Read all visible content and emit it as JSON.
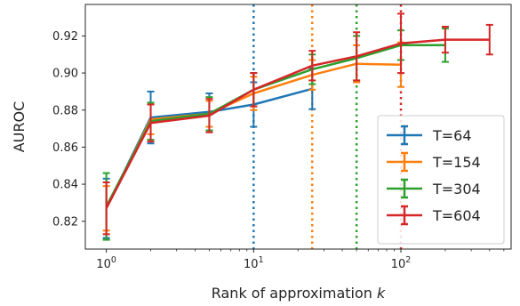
{
  "chart_data": {
    "type": "line",
    "xlabel": "Rank of approximation",
    "xlabel_var": "k",
    "ylabel": "AUROC",
    "xscale": "log",
    "xlim": [
      0.72,
      560
    ],
    "ylim": [
      0.805,
      0.937
    ],
    "xticks": [
      {
        "value": 1,
        "base": "10",
        "exp": "0"
      },
      {
        "value": 10,
        "base": "10",
        "exp": "1"
      },
      {
        "value": 100,
        "base": "10",
        "exp": "2"
      }
    ],
    "yticks": [
      {
        "value": 0.82,
        "label": "0.82"
      },
      {
        "value": 0.84,
        "label": "0.84"
      },
      {
        "value": 0.86,
        "label": "0.86"
      },
      {
        "value": 0.88,
        "label": "0.88"
      },
      {
        "value": 0.9,
        "label": "0.90"
      },
      {
        "value": 0.92,
        "label": "0.92"
      }
    ],
    "grid": false,
    "legend_position": "lower-right",
    "vlines": [
      {
        "x": 10,
        "color": "#1f77b4",
        "style": "dotted"
      },
      {
        "x": 25,
        "color": "#ff7f0e",
        "style": "dotted"
      },
      {
        "x": 50,
        "color": "#2ca02c",
        "style": "dotted"
      },
      {
        "x": 100,
        "color": "#d62728",
        "style": "dotted"
      }
    ],
    "series": [
      {
        "name": "T=64",
        "color": "#1f77b4",
        "x": [
          1,
          2,
          5,
          10,
          25
        ],
        "y": [
          0.827,
          0.876,
          0.879,
          0.883,
          0.8915
        ],
        "err": [
          0.016,
          0.014,
          0.01,
          0.012,
          0.011
        ]
      },
      {
        "name": "T=154",
        "color": "#ff7f0e",
        "x": [
          1,
          2,
          5,
          10,
          25,
          50,
          100
        ],
        "y": [
          0.827,
          0.875,
          0.878,
          0.889,
          0.899,
          0.905,
          0.9045
        ],
        "err": [
          0.012,
          0.008,
          0.007,
          0.009,
          0.008,
          0.01,
          0.012
        ]
      },
      {
        "name": "T=304",
        "color": "#2ca02c",
        "x": [
          1,
          2,
          5,
          10,
          25,
          50,
          100,
          200
        ],
        "y": [
          0.828,
          0.874,
          0.878,
          0.891,
          0.902,
          0.908,
          0.915,
          0.915
        ],
        "err": [
          0.018,
          0.01,
          0.009,
          0.009,
          0.008,
          0.012,
          0.008,
          0.009
        ]
      },
      {
        "name": "T=604",
        "color": "#d62728",
        "x": [
          1,
          2,
          5,
          10,
          25,
          50,
          100,
          200,
          400
        ],
        "y": [
          0.827,
          0.873,
          0.877,
          0.891,
          0.904,
          0.909,
          0.916,
          0.918,
          0.918
        ],
        "err": [
          0.014,
          0.01,
          0.009,
          0.009,
          0.008,
          0.013,
          0.016,
          0.007,
          0.008
        ]
      }
    ]
  }
}
